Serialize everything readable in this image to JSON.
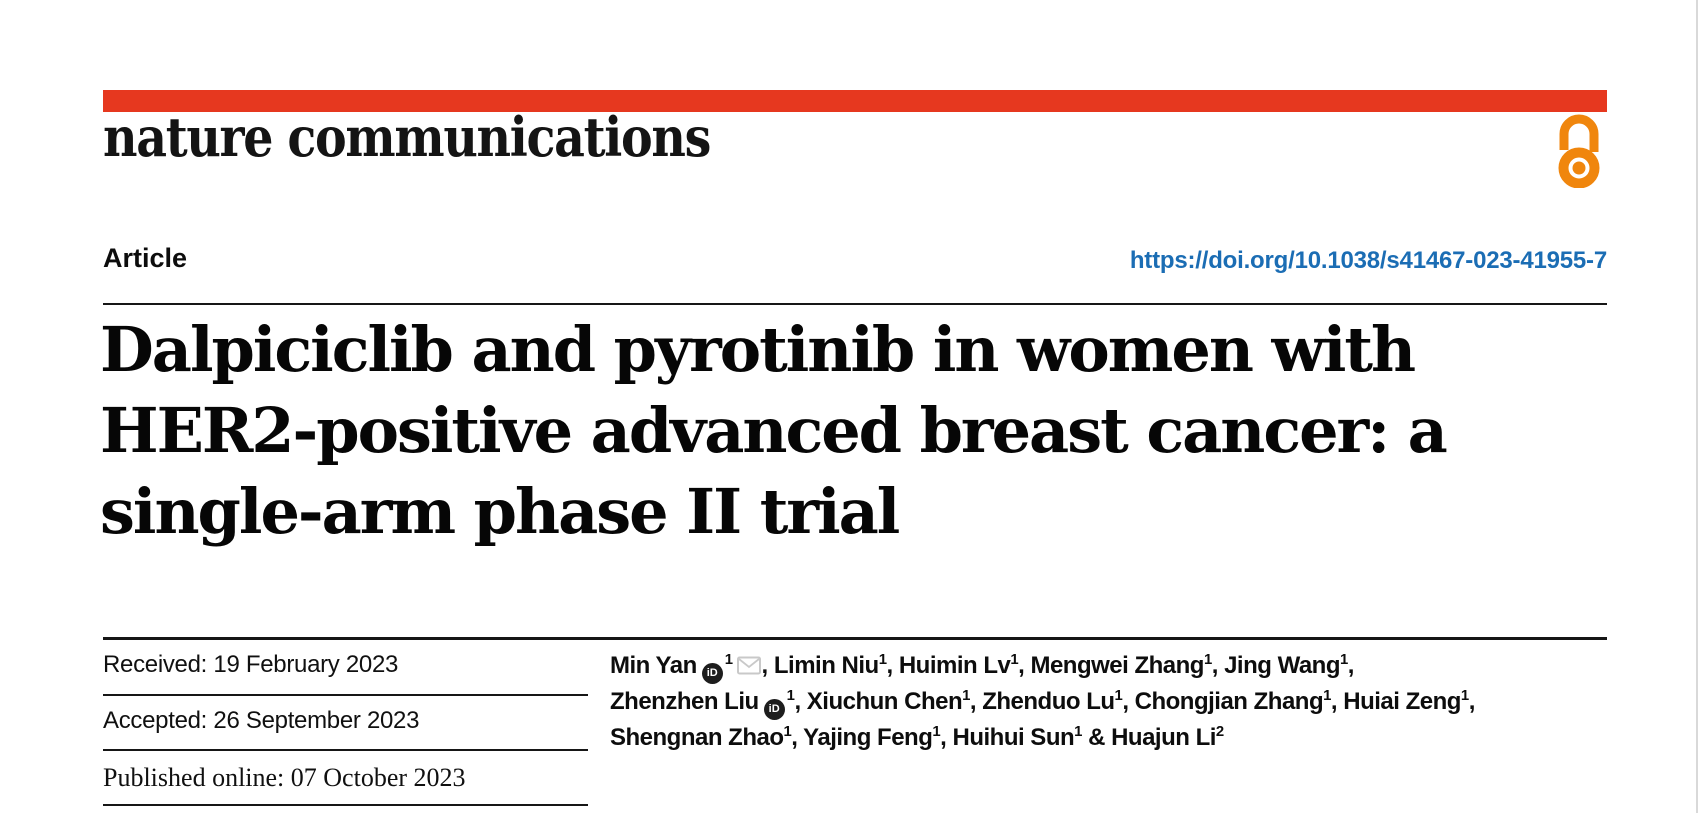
{
  "page": {
    "background": "#ffffff",
    "right_edge_line_color": "#d9d9d9"
  },
  "masthead": {
    "top_bar_color": "#e6381f",
    "journal_name": "nature communications",
    "open_access_icon": "open-access-lock-icon",
    "open_access_color": "#f0860d"
  },
  "article_header": {
    "article_type": "Article",
    "doi_url": "https://doi.org/10.1038/s41467-023-41955-7",
    "doi_color": "#1b6db4"
  },
  "title": {
    "lines": [
      "Dalpiciclib and pyrotinib in women with",
      "HER2-positive advanced breast cancer: a",
      "single-arm phase II trial"
    ]
  },
  "history": {
    "rows": [
      {
        "label": "Received:",
        "value": "19 February 2023"
      },
      {
        "label": "Accepted:",
        "value": "26 September 2023"
      },
      {
        "label": "Published online:",
        "value": "07 October 2023"
      }
    ]
  },
  "authors": {
    "icons": {
      "orcid": "orcid-id-icon",
      "email": "email-envelope-icon"
    },
    "orcid_icon_text": "iD",
    "lines": [
      [
        {
          "t": "Min Yan"
        },
        {
          "orcid": true
        },
        {
          "s": "1"
        },
        {
          "mail": true
        },
        {
          "t": ", Limin Niu"
        },
        {
          "s": "1"
        },
        {
          "t": ", Huimin Lv"
        },
        {
          "s": "1"
        },
        {
          "t": ", Mengwei Zhang"
        },
        {
          "s": "1"
        },
        {
          "t": ", Jing Wang"
        },
        {
          "s": "1"
        },
        {
          "t": ","
        }
      ],
      [
        {
          "t": "Zhenzhen Liu"
        },
        {
          "orcid": true
        },
        {
          "s": "1"
        },
        {
          "t": ", Xiuchun Chen"
        },
        {
          "s": "1"
        },
        {
          "t": ", Zhenduo Lu"
        },
        {
          "s": "1"
        },
        {
          "t": ", Chongjian Zhang"
        },
        {
          "s": "1"
        },
        {
          "t": ", Huiai Zeng"
        },
        {
          "s": "1"
        },
        {
          "t": ","
        }
      ],
      [
        {
          "t": "Shengnan Zhao"
        },
        {
          "s": "1"
        },
        {
          "t": ", Yajing Feng"
        },
        {
          "s": "1"
        },
        {
          "t": ", Huihui Sun"
        },
        {
          "s": "1"
        },
        {
          "t": " & Huajun Li"
        },
        {
          "s": "2"
        }
      ]
    ]
  }
}
